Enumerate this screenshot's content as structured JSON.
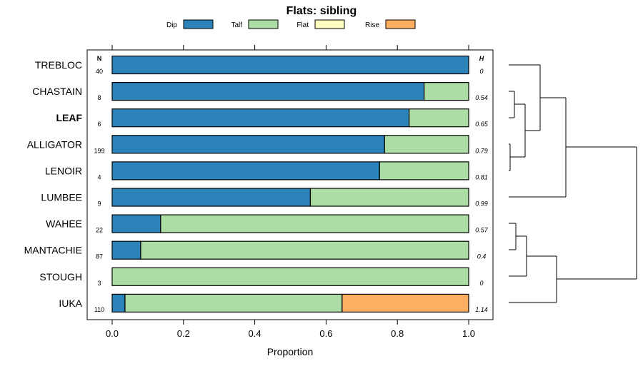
{
  "chart_data": {
    "type": "bar",
    "stacked": true,
    "orientation": "horizontal",
    "title": "Flats: sibling",
    "xlabel": "Proportion",
    "xlim": [
      0,
      1
    ],
    "x_ticks": [
      "0.0",
      "0.2",
      "0.4",
      "0.6",
      "0.8",
      "1.0"
    ],
    "n_header": "N",
    "h_header": "H",
    "legend": [
      {
        "name": "Dip",
        "color": "#2b83ba"
      },
      {
        "name": "Talf",
        "color": "#abdda4"
      },
      {
        "name": "Flat",
        "color": "#ffffbf"
      },
      {
        "name": "Rise",
        "color": "#fdae61"
      }
    ],
    "categories": [
      "TREBLOC",
      "CHASTAIN",
      "LEAF",
      "ALLIGATOR",
      "LENOIR",
      "LUMBEE",
      "WAHEE",
      "MANTACHIE",
      "STOUGH",
      "IUKA"
    ],
    "bold_category": "LEAF",
    "n_values": [
      "40",
      "8",
      "6",
      "199",
      "4",
      "9",
      "22",
      "87",
      "3",
      "110"
    ],
    "h_values": [
      "0",
      "0.54",
      "0.65",
      "0.79",
      "0.81",
      "0.99",
      "0.57",
      "0.4",
      "0",
      "1.14"
    ],
    "series": [
      {
        "name": "Dip",
        "values": [
          1.0,
          0.875,
          0.833,
          0.764,
          0.75,
          0.556,
          0.136,
          0.08,
          0.0,
          0.036
        ]
      },
      {
        "name": "Talf",
        "values": [
          0.0,
          0.125,
          0.167,
          0.236,
          0.25,
          0.444,
          0.864,
          0.92,
          1.0,
          0.609
        ]
      },
      {
        "name": "Flat",
        "values": [
          0,
          0,
          0,
          0,
          0,
          0,
          0,
          0,
          0,
          0
        ]
      },
      {
        "name": "Rise",
        "values": [
          0,
          0,
          0,
          0,
          0,
          0,
          0,
          0,
          0,
          0.355
        ]
      }
    ]
  }
}
